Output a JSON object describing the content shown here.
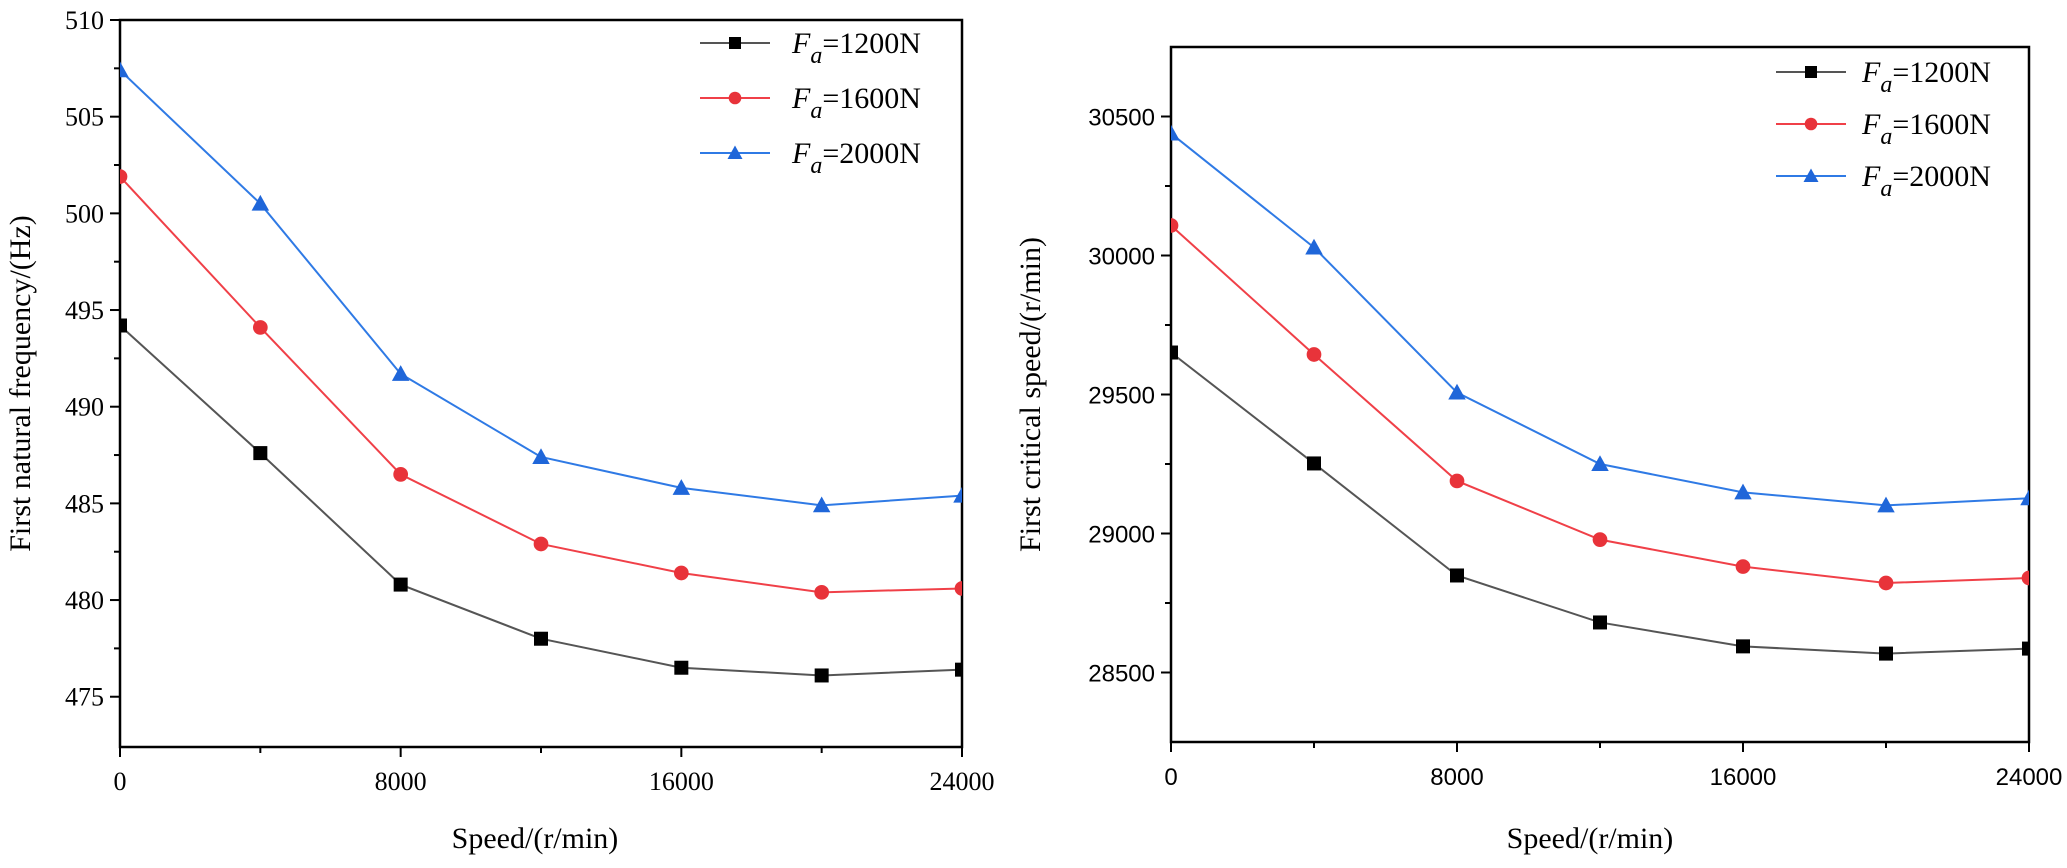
{
  "chart_data": [
    {
      "type": "line",
      "title": "",
      "xlabel": "Speed/(r/min)",
      "ylabel": "First natural frequency/(Hz)",
      "xlim": [
        0,
        24000
      ],
      "ylim": [
        472.4,
        510
      ],
      "xticks": [
        0,
        8000,
        16000,
        24000
      ],
      "xtick_labels": [
        "0",
        "8000",
        "16000",
        "24000"
      ],
      "xminor_ticks": [
        4000,
        12000,
        20000
      ],
      "yticks": [
        475,
        480,
        485,
        490,
        495,
        500,
        505,
        510
      ],
      "ytick_labels": [
        "475",
        "480",
        "485",
        "490",
        "495",
        "500",
        "505",
        "510"
      ],
      "yminor_ticks": [
        477.5,
        482.5,
        487.5,
        492.5,
        497.5,
        502.5,
        507.5
      ],
      "grid": false,
      "legend_position": "top-right",
      "x": [
        0,
        4000,
        8000,
        12000,
        16000,
        20000,
        24000
      ],
      "series": [
        {
          "name": "Fa=1200N",
          "label_main": "F",
          "label_sub": "a",
          "label_rest": "=1200N",
          "color": "#000000",
          "line_color": "#555555",
          "marker": "square",
          "values": [
            494.2,
            487.6,
            480.8,
            478.0,
            476.5,
            476.1,
            476.4
          ]
        },
        {
          "name": "Fa=1600N",
          "label_main": "F",
          "label_sub": "a",
          "label_rest": "=1600N",
          "color": "#e8333a",
          "line_color": "#f04048",
          "marker": "circle",
          "values": [
            501.9,
            494.1,
            486.5,
            482.9,
            481.4,
            480.4,
            480.6
          ]
        },
        {
          "name": "Fa=2000N",
          "label_main": "F",
          "label_sub": "a",
          "label_rest": "=2000N",
          "color": "#1f66d9",
          "line_color": "#2f7ae5",
          "marker": "triangle",
          "values": [
            507.4,
            500.5,
            491.7,
            487.4,
            485.8,
            484.9,
            485.4
          ]
        }
      ]
    },
    {
      "type": "line",
      "title": "",
      "xlabel": "Speed/(r/min)",
      "ylabel": "First critical speed/(r/min)",
      "xlim": [
        0,
        24000
      ],
      "ylim": [
        28250,
        30750
      ],
      "xticks": [
        0,
        8000,
        16000,
        24000
      ],
      "xtick_labels": [
        "0",
        "8000",
        "16000",
        "24000"
      ],
      "xminor_ticks": [
        4000,
        12000,
        20000
      ],
      "yticks": [
        28500,
        29000,
        29500,
        30000,
        30500
      ],
      "ytick_labels": [
        "28500",
        "29000",
        "29500",
        "30000",
        "30500"
      ],
      "yminor_ticks": [
        28750,
        29250,
        29750,
        30250
      ],
      "grid": false,
      "legend_position": "top-right",
      "x": [
        0,
        4000,
        8000,
        12000,
        16000,
        20000,
        24000
      ],
      "series": [
        {
          "name": "Fa=1200N",
          "label_main": "F",
          "label_sub": "a",
          "label_rest": "=1200N",
          "color": "#000000",
          "line_color": "#555555",
          "marker": "square",
          "values": [
            29651,
            29252,
            28849,
            28680,
            28594,
            28568,
            28586
          ]
        },
        {
          "name": "Fa=1600N",
          "label_main": "F",
          "label_sub": "a",
          "label_rest": "=1600N",
          "color": "#e8333a",
          "line_color": "#f04048",
          "marker": "circle",
          "values": [
            30108,
            29644,
            29189,
            28978,
            28881,
            28822,
            28840
          ]
        },
        {
          "name": "Fa=2000N",
          "label_main": "F",
          "label_sub": "a",
          "label_rest": "=2000N",
          "color": "#1f66d9",
          "line_color": "#2f7ae5",
          "marker": "triangle",
          "values": [
            30439,
            30029,
            29507,
            29250,
            29148,
            29101,
            29127
          ]
        }
      ]
    }
  ]
}
